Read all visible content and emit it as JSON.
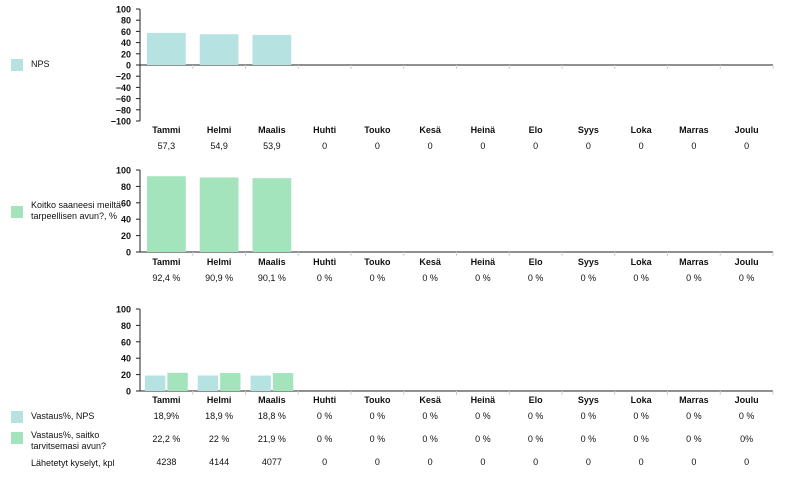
{
  "colors": {
    "nps": "#b6e3e2",
    "help": "#a3e4bd",
    "grid": "#cfcfcf",
    "axis": "#222222"
  },
  "categories": [
    "Tammi",
    "Helmi",
    "Maalis",
    "Huhti",
    "Touko",
    "Kesä",
    "Heinä",
    "Elo",
    "Syys",
    "Loka",
    "Marras",
    "Joulu"
  ],
  "legend": {
    "nps": "NPS",
    "help": "Koitko saaneesi meiltä tarpeellisen avun?, %",
    "resp_nps": "Vastaus%, NPS",
    "resp_help": "Vastaus%, saitko tarvitsemasi avun?",
    "sent": "Lähetetyt kyselyt, kpl"
  },
  "chart_data": [
    {
      "type": "bar",
      "title": "NPS",
      "categories": [
        "Tammi",
        "Helmi",
        "Maalis",
        "Huhti",
        "Touko",
        "Kesä",
        "Heinä",
        "Elo",
        "Syys",
        "Loka",
        "Marras",
        "Joulu"
      ],
      "ylim": [
        -100,
        100
      ],
      "yticks": [
        "100",
        "80",
        "60",
        "40",
        "20",
        "0",
        "−20",
        "−40",
        "−60",
        "−80",
        "−100"
      ],
      "series": [
        {
          "name": "NPS",
          "values": [
            57.3,
            54.9,
            53.9,
            0,
            0,
            0,
            0,
            0,
            0,
            0,
            0,
            0
          ]
        }
      ],
      "table": [
        [
          "57,3",
          "54,9",
          "53,9",
          "0",
          "0",
          "0",
          "0",
          "0",
          "0",
          "0",
          "0",
          "0"
        ]
      ]
    },
    {
      "type": "bar",
      "title": "Koitko saaneesi meiltä tarpeellisen avun?, %",
      "categories": [
        "Tammi",
        "Helmi",
        "Maalis",
        "Huhti",
        "Touko",
        "Kesä",
        "Heinä",
        "Elo",
        "Syys",
        "Loka",
        "Marras",
        "Joulu"
      ],
      "ylim": [
        0,
        100
      ],
      "yticks": [
        "100",
        "80",
        "60",
        "40",
        "20",
        "0"
      ],
      "series": [
        {
          "name": "Koitko saaneesi meiltä tarpeellisen avun?, %",
          "values": [
            92.4,
            90.9,
            90.1,
            0,
            0,
            0,
            0,
            0,
            0,
            0,
            0,
            0
          ]
        }
      ],
      "table": [
        [
          "92,4 %",
          "90,9 %",
          "90,1 %",
          "0 %",
          "0 %",
          "0 %",
          "0 %",
          "0 %",
          "0 %",
          "0 %",
          "0 %",
          "0 %"
        ]
      ]
    },
    {
      "type": "bar",
      "title": "Vastaus%",
      "categories": [
        "Tammi",
        "Helmi",
        "Maalis",
        "Huhti",
        "Touko",
        "Kesä",
        "Heinä",
        "Elo",
        "Syys",
        "Loka",
        "Marras",
        "Joulu"
      ],
      "ylim": [
        0,
        100
      ],
      "yticks": [
        "100",
        "80",
        "60",
        "40",
        "20",
        "0"
      ],
      "series": [
        {
          "name": "Vastaus%, NPS",
          "values": [
            18.9,
            18.9,
            18.8,
            0,
            0,
            0,
            0,
            0,
            0,
            0,
            0,
            0
          ]
        },
        {
          "name": "Vastaus%, saitko tarvitsemasi avun?",
          "values": [
            22.2,
            22,
            21.9,
            0,
            0,
            0,
            0,
            0,
            0,
            0,
            0,
            0
          ]
        }
      ],
      "table": [
        [
          "18,9%",
          "18,9 %",
          "18,8 %",
          "0 %",
          "0 %",
          "0 %",
          "0 %",
          "0 %",
          "0 %",
          "0 %",
          "0 %",
          "0 %"
        ],
        [
          "22,2 %",
          "22 %",
          "21,9 %",
          "0 %",
          "0 %",
          "0 %",
          "0 %",
          "0 %",
          "0 %",
          "0 %",
          "0 %",
          "0%"
        ],
        [
          "4238",
          "4144",
          "4077",
          "0",
          "0",
          "0",
          "0",
          "0",
          "0",
          "0",
          "0",
          "0"
        ]
      ]
    }
  ]
}
